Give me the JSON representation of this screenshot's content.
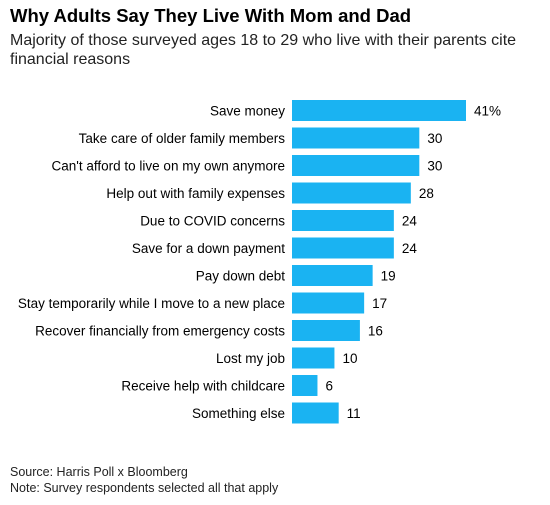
{
  "header": {
    "title": "Why Adults Say They Live With Mom and Dad",
    "subtitle": "Majority of those surveyed ages 18 to 29 who live with their parents cite financial reasons"
  },
  "footer": {
    "source": "Source: Harris Poll x Bloomberg",
    "note": "Note: Survey respondents selected all that apply"
  },
  "colors": {
    "bar": "#1ab3f2",
    "text": "#000000"
  },
  "chart_data": {
    "type": "bar",
    "orientation": "horizontal",
    "title": "Why Adults Say They Live With Mom and Dad",
    "subtitle": "Majority of those surveyed ages 18 to 29 who live with their parents cite financial reasons",
    "categories": [
      "Save money",
      "Take care of older family members",
      "Can't afford to live on my own anymore",
      "Help out with family expenses",
      "Due to COVID concerns",
      "Save for a down payment",
      "Pay down debt",
      "Stay temporarily while I move to a new place",
      "Recover financially from emergency costs",
      "Lost my job",
      "Receive help with childcare",
      "Something else"
    ],
    "values": [
      41,
      30,
      30,
      28,
      24,
      24,
      19,
      17,
      16,
      10,
      6,
      11
    ],
    "value_labels": [
      "41%",
      "30",
      "30",
      "28",
      "24",
      "24",
      "19",
      "17",
      "16",
      "10",
      "6",
      "11"
    ],
    "unit": "%",
    "xlim": [
      0,
      41
    ],
    "grid": false,
    "legend": "none"
  }
}
